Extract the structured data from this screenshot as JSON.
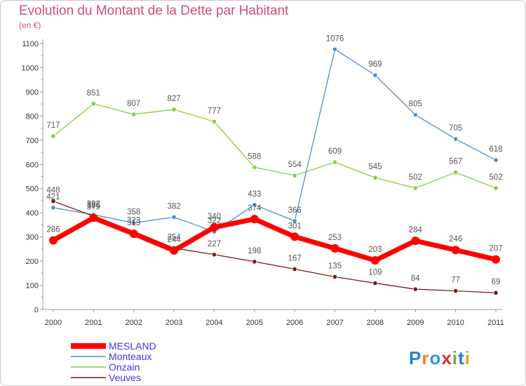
{
  "chart_data": {
    "type": "line",
    "title": "Evolution du Montant de la Dette par Habitant",
    "subtitle": "(en €)",
    "xlabel": "",
    "ylabel": "",
    "ylim": [
      0,
      1100
    ],
    "yticks": [
      0,
      100,
      200,
      300,
      400,
      500,
      600,
      700,
      800,
      900,
      1000,
      1100
    ],
    "x": [
      "2000",
      "2001",
      "2002",
      "2003",
      "2004",
      "2005",
      "2006",
      "2007",
      "2008",
      "2009",
      "2010",
      "2011"
    ],
    "grid": false,
    "legend": "bottom-left",
    "series": [
      {
        "name": "MESLAND",
        "color": "#ff0000",
        "values": [
          286,
          379,
          313,
          244,
          340,
          374,
          301,
          253,
          203,
          284,
          246,
          207
        ]
      },
      {
        "name": "Monteaux",
        "color": "#4f8fca",
        "values": [
          421,
          392,
          358,
          382,
          322,
          433,
          366,
          1076,
          969,
          805,
          705,
          618
        ]
      },
      {
        "name": "Onzain",
        "color": "#80d040",
        "values": [
          717,
          851,
          807,
          827,
          777,
          588,
          554,
          609,
          545,
          502,
          567,
          502
        ]
      },
      {
        "name": "Veuves",
        "color": "#7a1a1a",
        "values": [
          448,
          386,
          323,
          254,
          227,
          198,
          167,
          135,
          109,
          84,
          77,
          69
        ]
      }
    ]
  },
  "brand": {
    "parts": [
      "P",
      "r",
      "o",
      "x",
      "i",
      "t",
      "i"
    ],
    "colors": [
      "#2a7fd0",
      "#f08020",
      "#2a9fd0",
      "#e03030",
      "#70b030",
      "#2a7fd0",
      "#f0a020"
    ]
  }
}
